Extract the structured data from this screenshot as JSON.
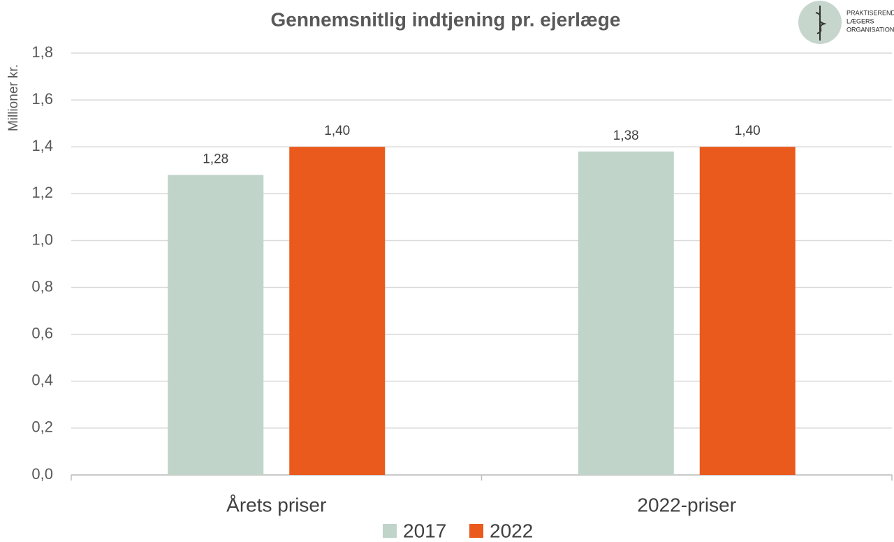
{
  "chart_data": {
    "type": "bar",
    "title": "Gennemsnitlig indtjening pr. ejerlæge",
    "y_label": "Millioner kr.",
    "logo": [
      "PRAKTISERENDE",
      "LÆGERS",
      "ORGANISATION"
    ],
    "categories": [
      "Årets priser",
      "2022-priser"
    ],
    "series": [
      {
        "name": "2017",
        "color": "#c0d4c9",
        "values": [
          1.28,
          1.38
        ],
        "value_labels": [
          "1,28",
          "1,38"
        ]
      },
      {
        "name": "2022",
        "color": "#e95a1c",
        "values": [
          1.4,
          1.4
        ],
        "value_labels": [
          "1,40",
          "1,40"
        ]
      }
    ],
    "ylim": [
      0,
      1.8
    ],
    "yticks": [
      {
        "value": 0,
        "label": "0,0"
      },
      {
        "value": 0.2,
        "label": "0,2"
      },
      {
        "value": 0.4,
        "label": "0,4"
      },
      {
        "value": 0.6,
        "label": "0,6"
      },
      {
        "value": 0.8,
        "label": "0,8"
      },
      {
        "value": 1.0,
        "label": "1,0"
      },
      {
        "value": 1.2,
        "label": "1,2"
      },
      {
        "value": 1.4,
        "label": "1,4"
      },
      {
        "value": 1.6,
        "label": "1,6"
      },
      {
        "value": 1.8,
        "label": "1,8"
      }
    ],
    "grid": true,
    "legend": "bottom"
  }
}
